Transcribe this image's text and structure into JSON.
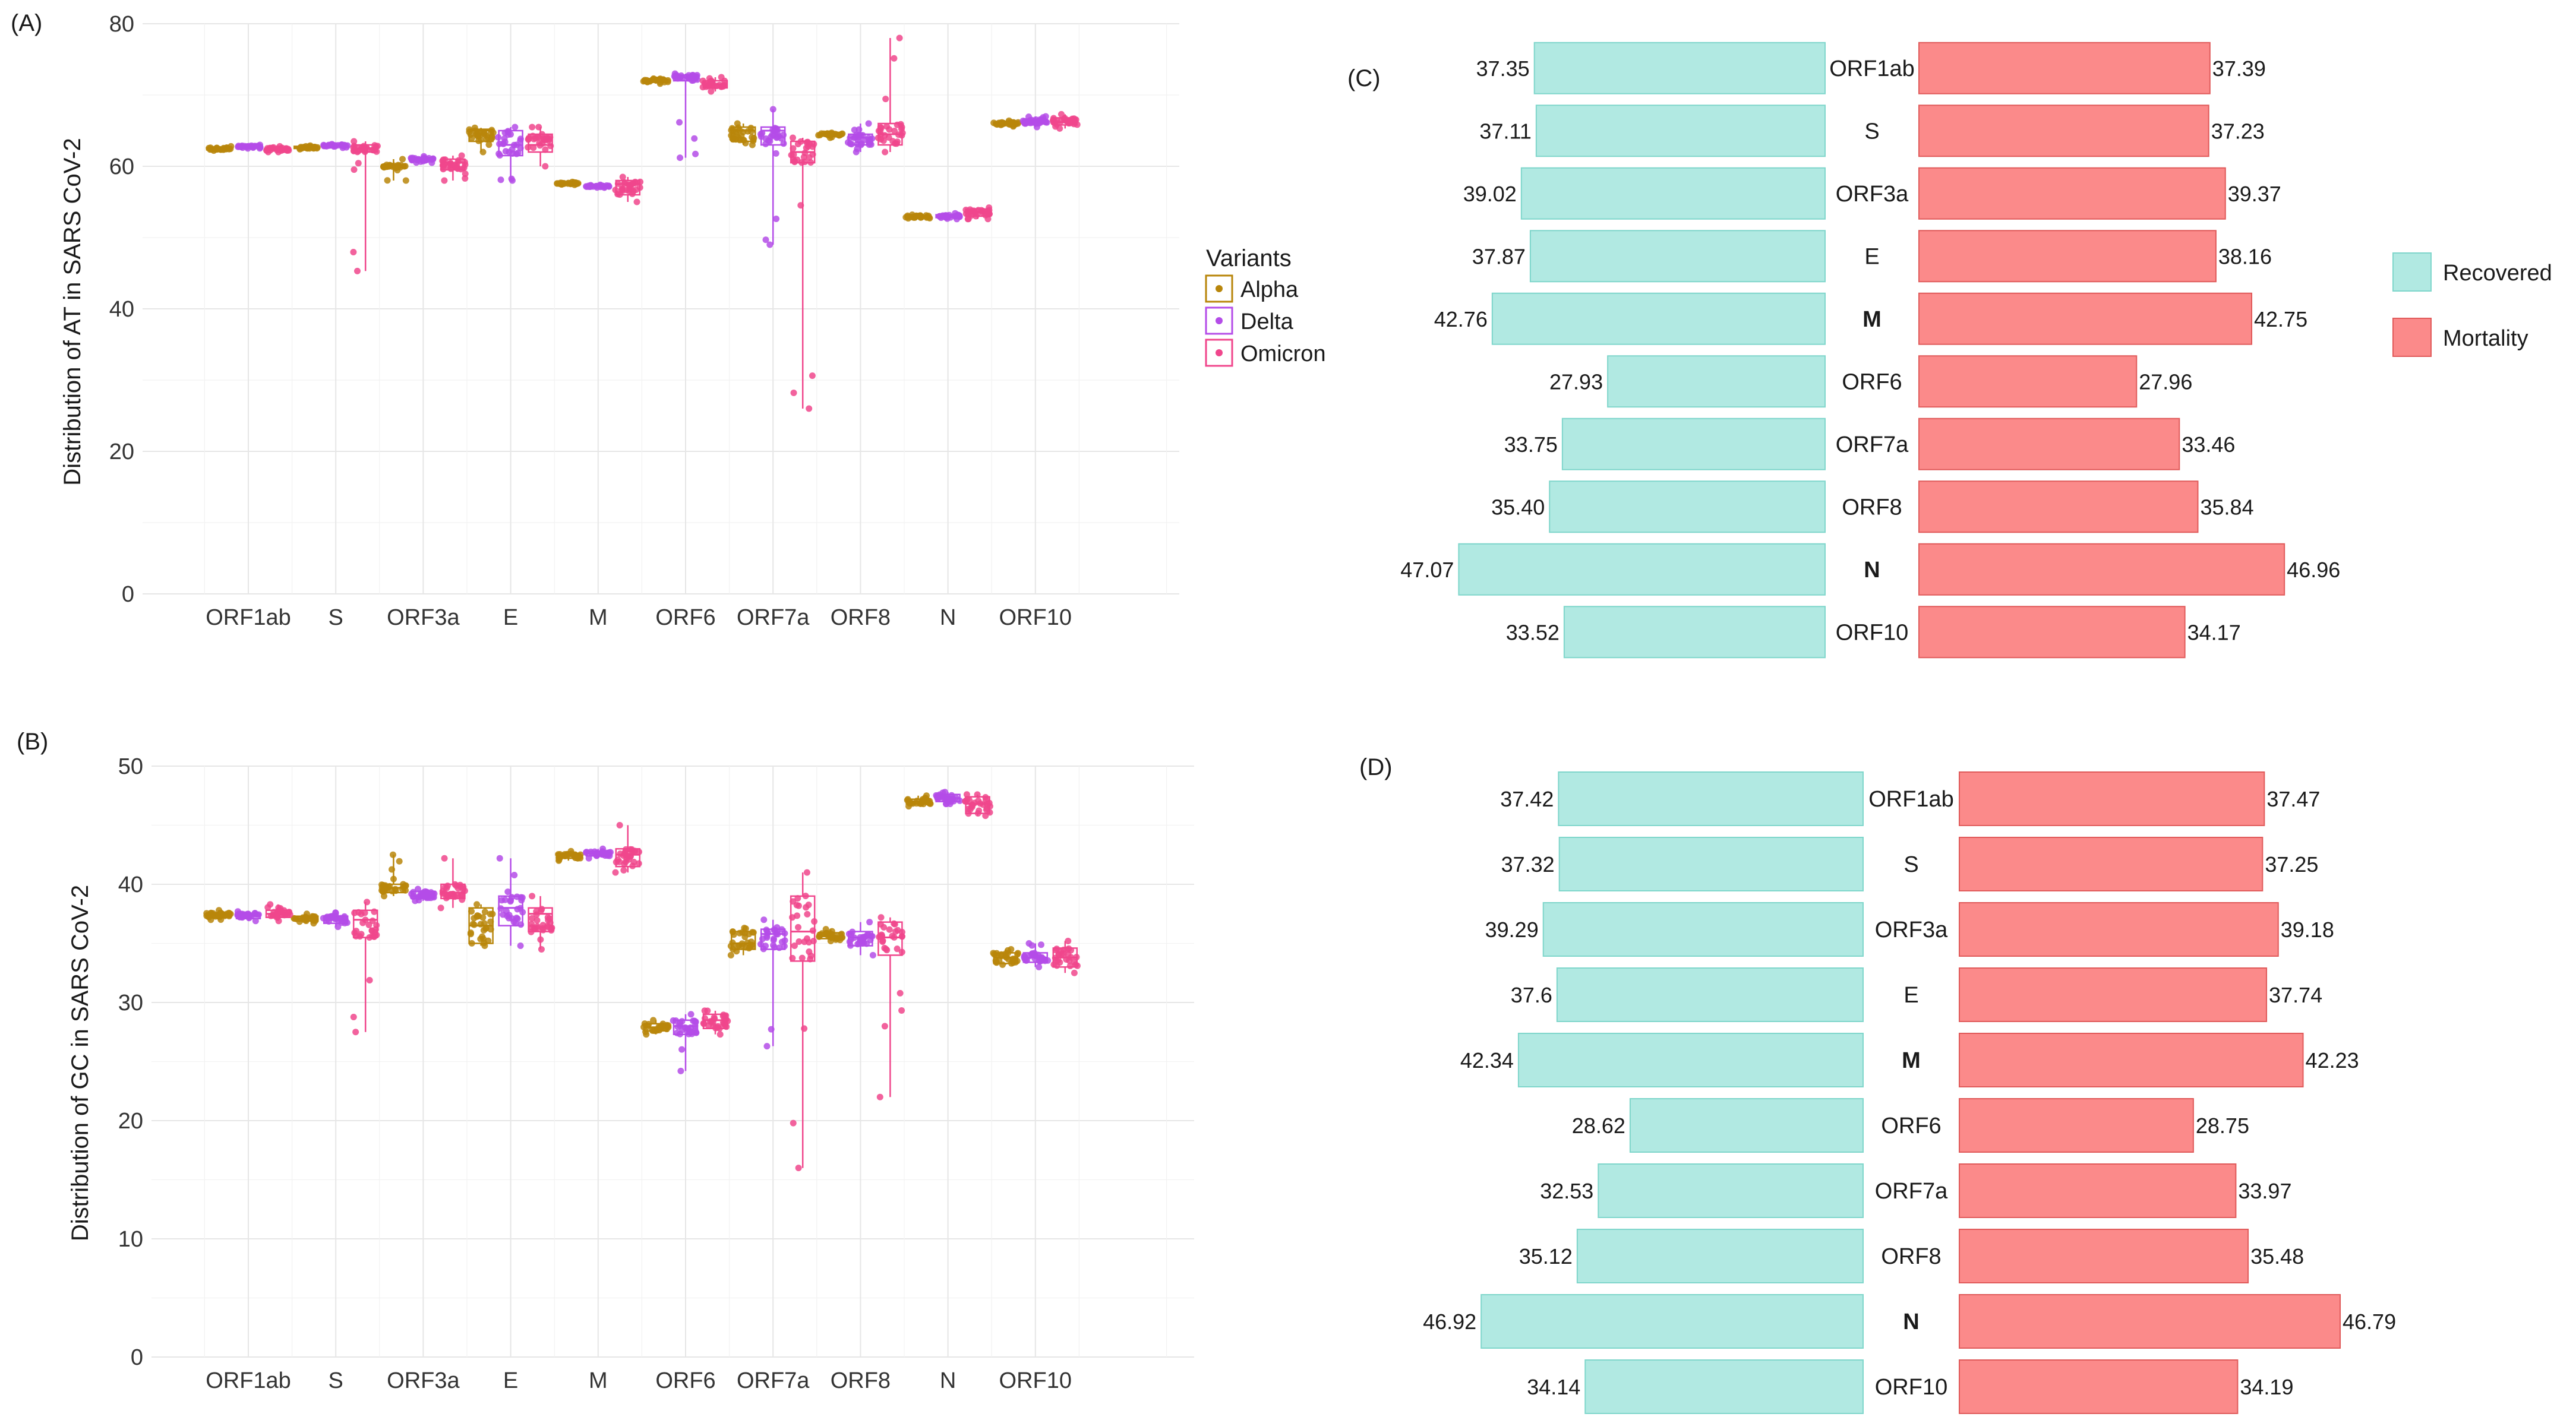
{
  "legend_variants": {
    "title": "Variants",
    "items": [
      {
        "name": "Alpha",
        "color": "#B8860B"
      },
      {
        "name": "Delta",
        "color": "#B44CE8"
      },
      {
        "name": "Omicron",
        "color": "#F0468C"
      }
    ]
  },
  "legend_outcome": {
    "items": [
      {
        "name": "Recovered",
        "color": "#B1E9E2",
        "stroke": "#7FD6CB"
      },
      {
        "name": "Mortality",
        "color": "#FB8A8A",
        "stroke": "#E05A5A"
      }
    ]
  },
  "chart_data": [
    {
      "panel": "(A)",
      "type": "box-jitter",
      "ylabel": "Distribution of AT in SARS CoV-2",
      "xlabel": "",
      "ylim": [
        0,
        80
      ],
      "yticks": [
        0,
        20,
        40,
        60,
        80
      ],
      "categories": [
        "ORF1ab",
        "S",
        "ORF3a",
        "E",
        "M",
        "ORF6",
        "ORF7a",
        "ORF8",
        "N",
        "ORF10"
      ],
      "series": [
        {
          "name": "Alpha",
          "medians": [
            62.5,
            62.7,
            60,
            65,
            57.6,
            72,
            65,
            64.5,
            53,
            66
          ],
          "q1": [
            62.3,
            62.5,
            59.8,
            63.5,
            57.5,
            71.8,
            63.5,
            64.3,
            52.8,
            65.8
          ],
          "q3": [
            62.6,
            62.8,
            60.2,
            65.2,
            57.7,
            72.2,
            65.5,
            64.6,
            53.1,
            66.2
          ],
          "min": [
            62.2,
            62.4,
            58,
            62,
            57.4,
            71.6,
            63,
            64,
            52.7,
            65.6
          ],
          "max": [
            62.8,
            62.9,
            61,
            65.4,
            57.8,
            72.3,
            66,
            64.7,
            53.2,
            66.4
          ]
        },
        {
          "name": "Delta",
          "medians": [
            62.8,
            62.9,
            61,
            63,
            57.2,
            72.5,
            65,
            64,
            53,
            66.3
          ],
          "q1": [
            62.6,
            62.8,
            60.8,
            61.5,
            57.1,
            72,
            63,
            63,
            52.8,
            66
          ],
          "q3": [
            62.9,
            63,
            61.2,
            65,
            57.3,
            72.8,
            65.5,
            64.5,
            53.2,
            66.6
          ],
          "min": [
            62.5,
            62.6,
            60.5,
            58,
            57,
            61.2,
            49,
            62,
            52.6,
            65.5
          ],
          "max": [
            63,
            63.1,
            61.4,
            65.5,
            57.4,
            73,
            68,
            66,
            53.4,
            67
          ]
        },
        {
          "name": "Omicron",
          "medians": [
            62.4,
            62.5,
            60.5,
            63,
            57.5,
            71.5,
            62,
            64.5,
            53.5,
            66.2
          ],
          "q1": [
            62.2,
            62,
            59.5,
            62,
            56,
            71,
            60.5,
            63,
            53,
            65.8
          ],
          "q3": [
            62.6,
            63,
            61,
            64.5,
            58,
            72,
            63.5,
            66,
            54,
            66.8
          ],
          "min": [
            62,
            45.3,
            58,
            60,
            55,
            70.5,
            26,
            62,
            52.6,
            65.3
          ],
          "max": [
            62.8,
            63.5,
            61.5,
            65.5,
            58.5,
            72.5,
            64,
            78,
            54.2,
            67.3
          ]
        }
      ],
      "legend": "right"
    },
    {
      "panel": "(B)",
      "type": "box-jitter",
      "ylabel": "Distribution of GC in SARS CoV-2",
      "xlabel": "",
      "ylim": [
        0,
        50
      ],
      "yticks": [
        0,
        10,
        20,
        30,
        40,
        50
      ],
      "categories": [
        "ORF1ab",
        "S",
        "ORF3a",
        "E",
        "M",
        "ORF6",
        "ORF7a",
        "ORF8",
        "N",
        "ORF10"
      ],
      "series": [
        {
          "name": "Alpha",
          "medians": [
            37.4,
            37.1,
            39.7,
            36.5,
            42.4,
            27.9,
            35,
            35.6,
            47,
            33.8
          ],
          "q1": [
            37.2,
            36.9,
            39.3,
            35,
            42.2,
            27.6,
            34.5,
            35.4,
            46.8,
            33.3
          ],
          "q3": [
            37.6,
            37.3,
            40,
            38,
            42.6,
            28.2,
            36,
            35.9,
            47.2,
            34.2
          ],
          "min": [
            37,
            36.7,
            39,
            34.8,
            42,
            27.3,
            34,
            35.2,
            46.6,
            33.2
          ],
          "max": [
            37.8,
            37.5,
            42.5,
            38.3,
            42.8,
            28.5,
            36.3,
            36.2,
            47.5,
            34.5
          ]
        },
        {
          "name": "Delta",
          "medians": [
            37.3,
            37,
            39,
            38,
            42.6,
            28,
            35.8,
            35.5,
            47.3,
            33.8
          ],
          "q1": [
            37.1,
            36.7,
            38.8,
            36.5,
            42.4,
            27.3,
            34.5,
            34.8,
            47,
            33.4
          ],
          "q3": [
            37.5,
            37.3,
            39.4,
            39,
            42.8,
            28.5,
            36.2,
            36,
            47.6,
            34.2
          ],
          "min": [
            36.9,
            36.4,
            38.6,
            34.8,
            42.2,
            24.2,
            26.3,
            34,
            46.8,
            33
          ],
          "max": [
            37.7,
            37.6,
            39.6,
            42.2,
            43,
            29,
            37,
            36.8,
            47.8,
            35
          ]
        },
        {
          "name": "Omicron",
          "medians": [
            37.5,
            37,
            39.3,
            37.5,
            42.5,
            28.5,
            36,
            35.5,
            46.8,
            33.8
          ],
          "q1": [
            37.2,
            35.5,
            38.8,
            36,
            41.5,
            27.8,
            33.5,
            34,
            46,
            33
          ],
          "q3": [
            37.8,
            37.8,
            40,
            38,
            43,
            29,
            39,
            36.8,
            47.4,
            34.6
          ],
          "min": [
            36.9,
            27.5,
            38,
            34.5,
            41,
            27.3,
            16,
            22,
            45.8,
            32.5
          ],
          "max": [
            38.3,
            38.5,
            42.2,
            39,
            45,
            29.3,
            41,
            37.2,
            47.6,
            35.2
          ]
        }
      ],
      "legend": "none"
    },
    {
      "panel": "(C)",
      "type": "bar",
      "orientation": "horizontal-diverging",
      "categories": [
        "ORF1ab",
        "S",
        "ORF3a",
        "E",
        "M",
        "ORF6",
        "ORF7a",
        "ORF8",
        "N",
        "ORF10"
      ],
      "series": [
        {
          "name": "Recovered",
          "values": [
            37.35,
            37.11,
            39.02,
            37.87,
            42.76,
            27.93,
            33.75,
            35.4,
            47.07,
            33.52
          ],
          "labels": [
            "37.35",
            "37.11",
            "39.02",
            "37.87",
            "42.76",
            "27.93",
            "33.75",
            "35.40",
            "47.07",
            "33.52"
          ]
        },
        {
          "name": "Mortality",
          "values": [
            37.39,
            37.23,
            39.37,
            38.16,
            42.75,
            27.96,
            33.46,
            35.84,
            46.96,
            34.17
          ],
          "labels": [
            "37.39",
            "37.23",
            "39.37",
            "38.16",
            "42.75",
            "27.96",
            "33.46",
            "35.84",
            "46.96",
            "34.17"
          ]
        }
      ],
      "legend": "right"
    },
    {
      "panel": "(D)",
      "type": "bar",
      "orientation": "horizontal-diverging",
      "categories": [
        "ORF1ab",
        "S",
        "ORF3a",
        "E",
        "M",
        "ORF6",
        "ORF7a",
        "ORF8",
        "N",
        "ORF10"
      ],
      "series": [
        {
          "name": "Recovered",
          "values": [
            37.42,
            37.32,
            39.29,
            37.6,
            42.34,
            28.62,
            32.53,
            35.12,
            46.92,
            34.14
          ],
          "labels": [
            "37.42",
            "37.32",
            "39.29",
            "37.6",
            "42.34",
            "28.62",
            "32.53",
            "35.12",
            "46.92",
            "34.14"
          ]
        },
        {
          "name": "Mortality",
          "values": [
            37.47,
            37.25,
            39.18,
            37.74,
            42.23,
            28.75,
            33.97,
            35.48,
            46.79,
            34.19
          ],
          "labels": [
            "37.47",
            "37.25",
            "39.18",
            "37.74",
            "42.23",
            "28.75",
            "33.97",
            "35.48",
            "46.79",
            "34.19"
          ]
        }
      ],
      "legend": "none"
    }
  ]
}
